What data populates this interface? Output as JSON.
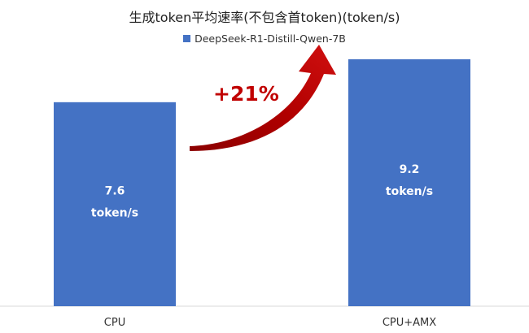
{
  "chart_data": {
    "type": "bar",
    "title": "生成token平均速率(不包含首token)(token/s)",
    "categories": [
      "CPU",
      "CPU+AMX"
    ],
    "series": [
      {
        "name": "DeepSeek-R1-Distill-Qwen-7B",
        "values": [
          7.6,
          9.2
        ],
        "color": "#4472C4"
      }
    ],
    "data_labels": [
      "7.6\ntoken/s",
      "9.2\ntoken/s"
    ],
    "annotation": {
      "text": "+21%",
      "color": "#C00000",
      "icon": "curved-up-arrow"
    },
    "ylim": [
      0,
      10.5
    ],
    "grid": false,
    "legend_position": "top"
  }
}
